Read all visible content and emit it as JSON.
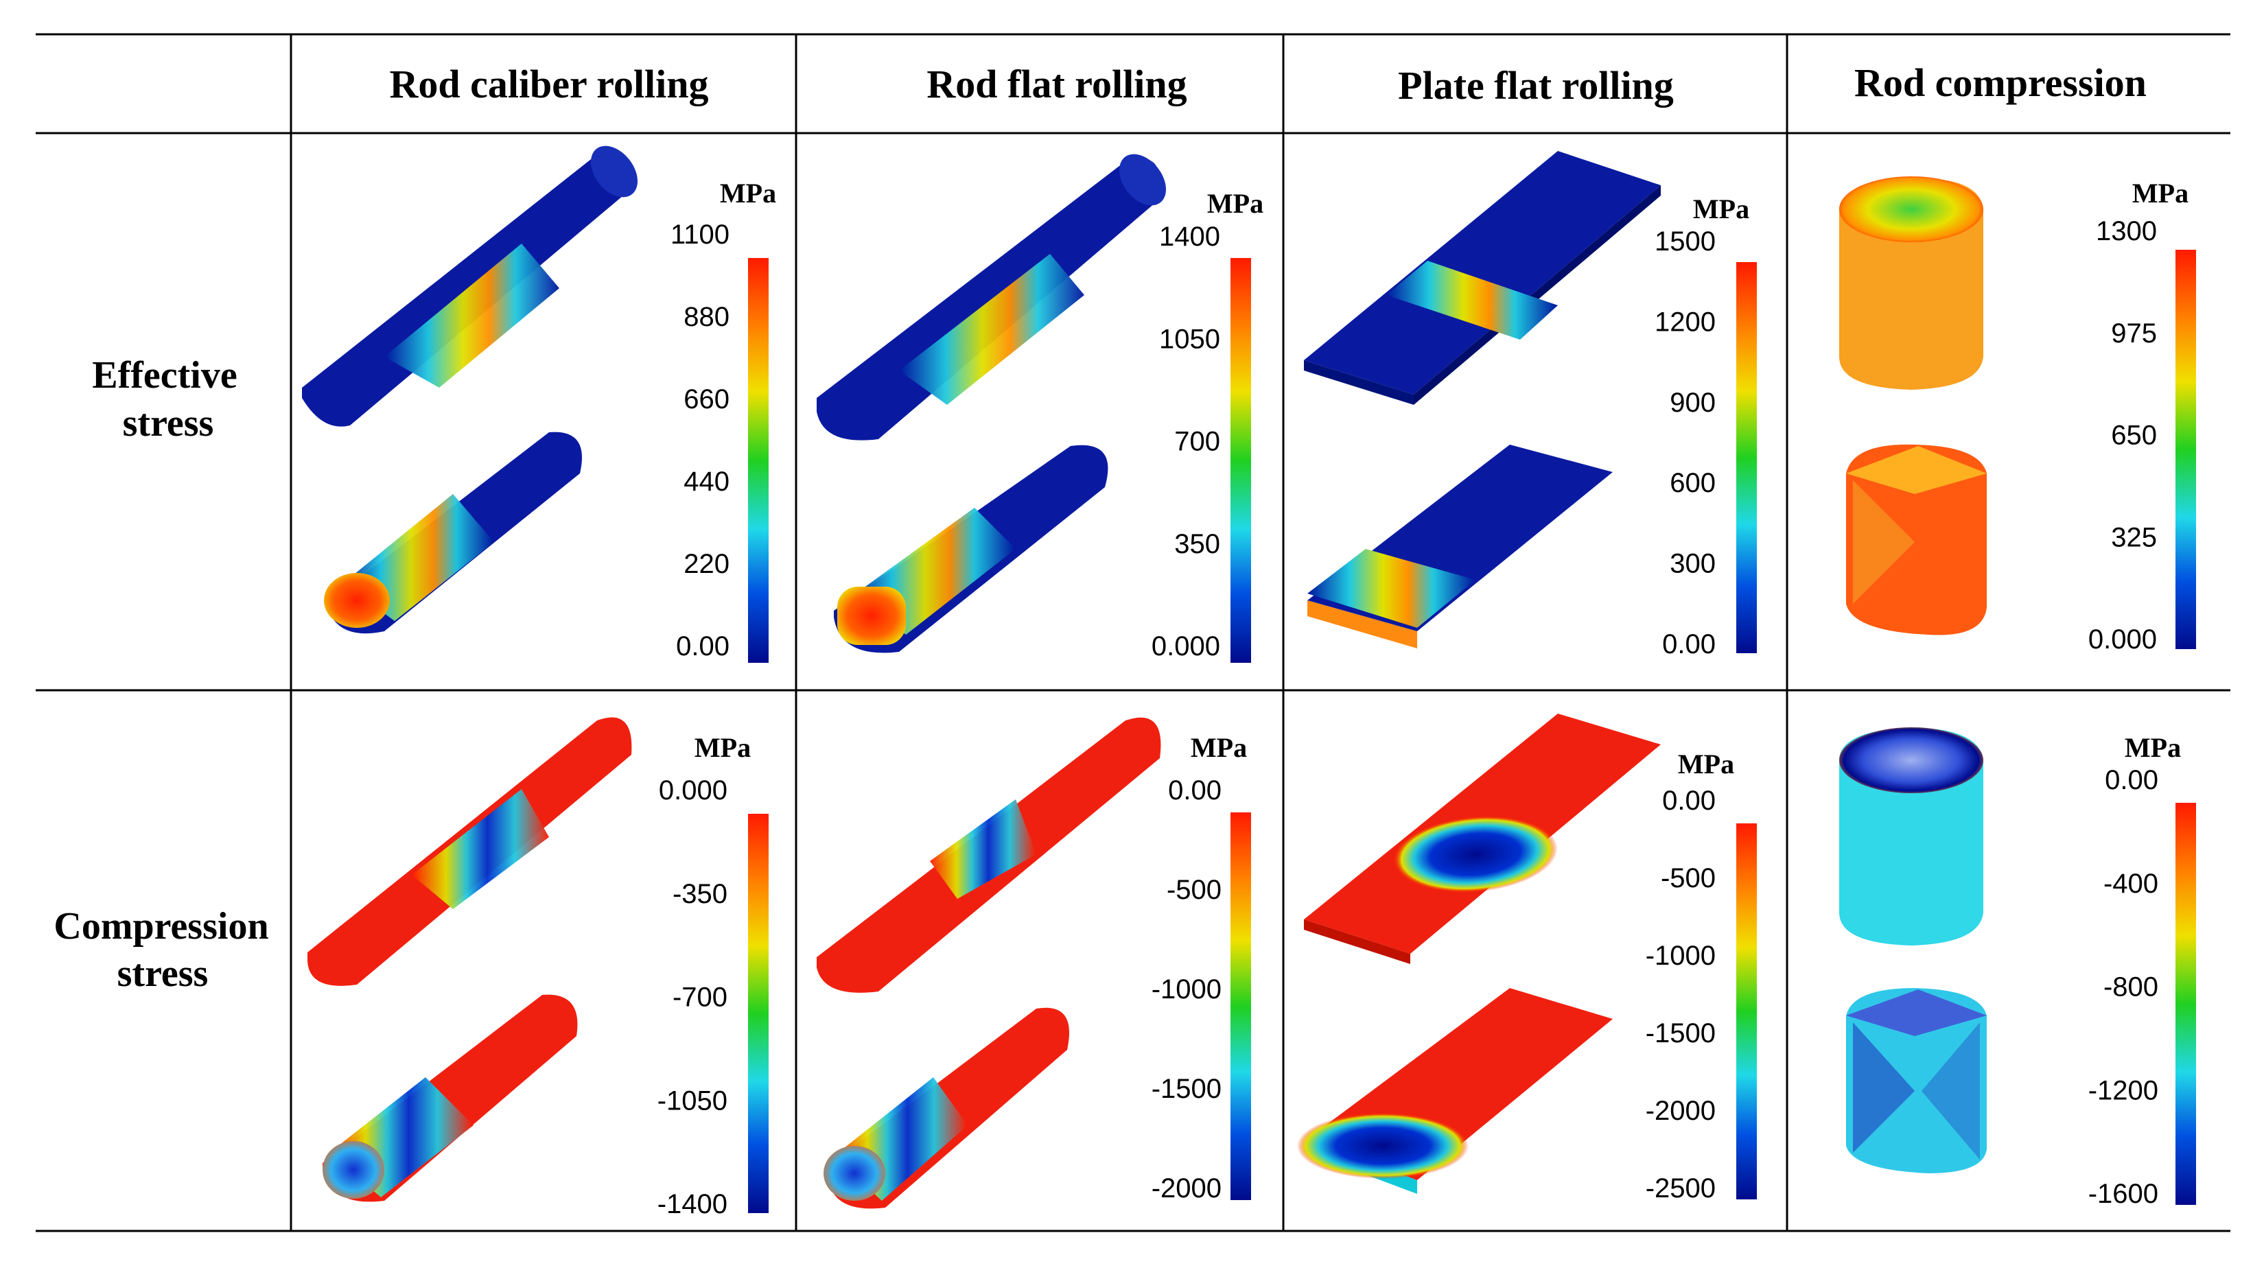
{
  "header": {
    "columns": [
      "Rod caliber rolling",
      "Rod flat rolling",
      "Plate flat rolling",
      "Rod compression"
    ]
  },
  "rows": [
    {
      "label_lines": [
        "Effective",
        "stress"
      ],
      "panels": [
        {
          "unit": "MPa",
          "ticks": [
            "1100",
            "880",
            "660",
            "440",
            "220",
            "0.00"
          ]
        },
        {
          "unit": "MPa",
          "ticks": [
            "1400",
            "1050",
            "700",
            "350",
            "0.000"
          ]
        },
        {
          "unit": "MPa",
          "ticks": [
            "1500",
            "1200",
            "900",
            "600",
            "300",
            "0.00"
          ]
        },
        {
          "unit": "MPa",
          "ticks": [
            "1300",
            "975",
            "650",
            "325",
            "0.000"
          ]
        }
      ]
    },
    {
      "label_lines": [
        "Compression",
        "stress"
      ],
      "panels": [
        {
          "unit": "MPa",
          "ticks": [
            "0.000",
            "-350",
            "-700",
            "-1050",
            "-1400"
          ]
        },
        {
          "unit": "MPa",
          "ticks": [
            "0.00",
            "-500",
            "-1000",
            "-1500",
            "-2000"
          ]
        },
        {
          "unit": "MPa",
          "ticks": [
            "0.00",
            "-500",
            "-1000",
            "-1500",
            "-2000",
            "-2500"
          ]
        },
        {
          "unit": "MPa",
          "ticks": [
            "0.00",
            "-400",
            "-800",
            "-1200",
            "-1600"
          ]
        }
      ]
    }
  ],
  "colors": {
    "rainbow": [
      "#ff1a00",
      "#ff8000",
      "#f0e000",
      "#20d020",
      "#20d8e8",
      "#0050e0",
      "#000a8c"
    ],
    "low": "#00159e",
    "high": "#ff1a00"
  }
}
